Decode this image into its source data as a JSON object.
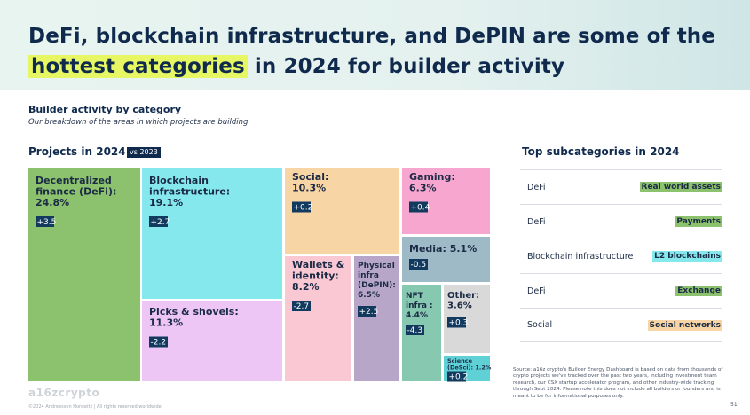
{
  "headline": {
    "line1": "DeFi, blockchain infrastructure, and DePIN are some of the",
    "highlight": "hottest categories",
    "line2_rest": " in 2024 for builder activity"
  },
  "section": {
    "title": "Builder activity by category",
    "subtitle": "Our breakdown of the areas in which projects are building"
  },
  "projects_title": "Projects in 2024",
  "vs_badge": "vs 2023",
  "colors": {
    "positive_delta_bg": "#123a5e",
    "navy": "#0f2a4d",
    "highlight": "#e6f763"
  },
  "chart_data": {
    "type": "treemap",
    "title": "Projects in 2024",
    "comparison": "vs 2023",
    "unit": "% of projects (delta in percentage points vs 2023)",
    "items": [
      {
        "lines": [
          "Decentralized",
          "finance (DeFi):",
          "24.8%"
        ],
        "name": "Decentralized finance (DeFi)",
        "value": 24.8,
        "delta_label": "+3.5",
        "delta": 3.5,
        "color": "#8cc26d"
      },
      {
        "lines": [
          "Blockchain",
          "infrastructure:",
          "19.1%"
        ],
        "name": "Blockchain infrastructure",
        "value": 19.1,
        "delta_label": "+2.7",
        "delta": 2.7,
        "color": "#85e8ec"
      },
      {
        "lines": [
          "Picks & shovels:",
          "11.3%"
        ],
        "name": "Picks & shovels",
        "value": 11.3,
        "delta_label": "-2.2",
        "delta": -2.2,
        "color": "#edc6f5"
      },
      {
        "lines": [
          "Social:",
          "10.3%"
        ],
        "name": "Social",
        "value": 10.3,
        "delta_label": "+0.2",
        "delta": 0.2,
        "color": "#f8d5a4"
      },
      {
        "lines": [
          "Wallets &",
          "identity:",
          "8.2%"
        ],
        "name": "Wallets & identity",
        "value": 8.2,
        "delta_label": "-2.7",
        "delta": -2.7,
        "color": "#f9c8d3"
      },
      {
        "lines": [
          "Physical",
          "infra",
          "(DePIN):",
          "6.5%"
        ],
        "name": "Physical infra (DePIN)",
        "value": 6.5,
        "delta_label": "+2.5",
        "delta": 2.5,
        "color": "#b8a6c8"
      },
      {
        "lines": [
          "Gaming:",
          "6.3%"
        ],
        "name": "Gaming",
        "value": 6.3,
        "delta_label": "+0.4",
        "delta": 0.4,
        "color": "#f7a6cf"
      },
      {
        "lines": [
          "Media: 5.1%"
        ],
        "name": "Media",
        "value": 5.1,
        "delta_label": "-0.5",
        "delta": -0.5,
        "color": "#9fbac7"
      },
      {
        "lines": [
          "NFT",
          "infra :",
          "4.4%"
        ],
        "name": "NFT infra",
        "value": 4.4,
        "delta_label": "-4.3",
        "delta": -4.3,
        "color": "#86c9b0"
      },
      {
        "lines": [
          "Other:",
          "3.6%"
        ],
        "name": "Other",
        "value": 3.6,
        "delta_label": "+0.3",
        "delta": 0.3,
        "color": "#d9d9d9"
      },
      {
        "lines": [
          "Science",
          "(DeSci):  1.2%"
        ],
        "name": "Science (DeSci)",
        "value": 1.2,
        "delta_label": "+0.2",
        "delta": 0.2,
        "color": "#5fd0d6"
      }
    ]
  },
  "side": {
    "title": "Top subcategories in 2024",
    "rows": [
      {
        "category": "DeFi",
        "subcategory": "Real world assets",
        "color": "#8cc26d"
      },
      {
        "category": "DeFi",
        "subcategory": "Payments",
        "color": "#8cc26d"
      },
      {
        "category": "Blockchain infrastructure",
        "subcategory": "L2 blockchains",
        "color": "#85e8ec"
      },
      {
        "category": "DeFi",
        "subcategory": "Exchange",
        "color": "#8cc26d"
      },
      {
        "category": "Social",
        "subcategory": "Social networks",
        "color": "#f8d5a4"
      }
    ]
  },
  "source": {
    "prefix": "Source: a16z crypto's ",
    "link": "Builder Energy Dashboard",
    "suffix": " is based on data from thousands of crypto projects we've tracked over the past two years, including investment team research, our CSX startup accelerator program, and other industry-wide tracking through Sept 2024. Please note this does not include all builders or founders and is meant to be for informational purposes only."
  },
  "logo": "a16zcrypto",
  "footer": "©2024 Andreessen Horowitz  |  All rights reserved worldwide.",
  "page_number": "51"
}
